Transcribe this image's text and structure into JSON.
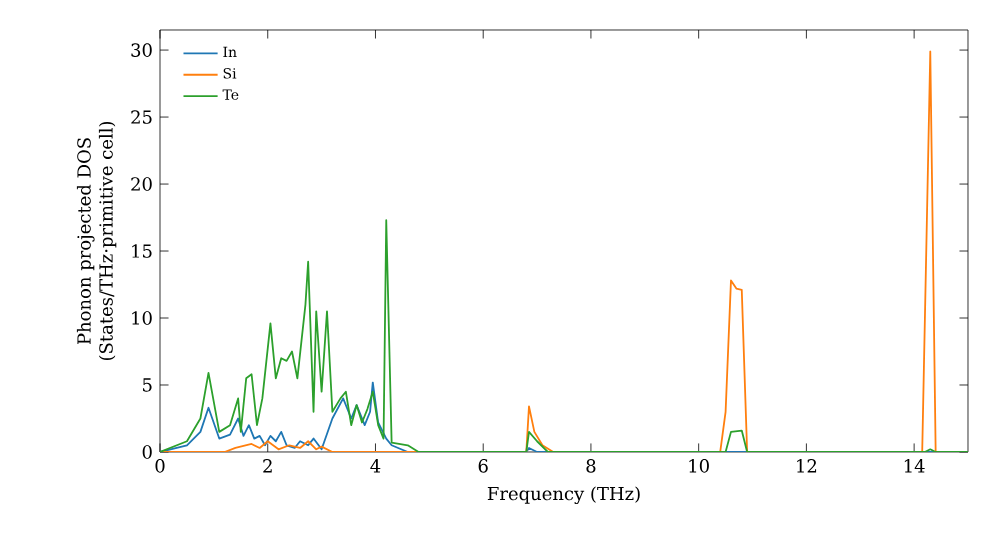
{
  "chart_data": {
    "type": "line",
    "xlabel": "Frequency (THz)",
    "ylabel": "Phonon projected DOS\n(States/THz·primitive cell)",
    "xlim": [
      0,
      15
    ],
    "ylim": [
      0,
      31.5
    ],
    "xticks": [
      0,
      2,
      4,
      6,
      8,
      10,
      12,
      14
    ],
    "yticks": [
      0,
      5,
      10,
      15,
      20,
      25,
      30
    ],
    "legend": "top left",
    "grid": false,
    "series": [
      {
        "name": "In",
        "color": "#1f77b4",
        "x": [
          0,
          0.5,
          0.75,
          0.9,
          1.1,
          1.3,
          1.45,
          1.55,
          1.65,
          1.75,
          1.85,
          1.95,
          2.05,
          2.15,
          2.25,
          2.35,
          2.5,
          2.6,
          2.75,
          2.85,
          3.0,
          3.2,
          3.4,
          3.55,
          3.65,
          3.8,
          3.9,
          3.95,
          4.05,
          4.2,
          4.3,
          4.6,
          6.8,
          6.85,
          7.0,
          15
        ],
        "values": [
          0,
          0.5,
          1.5,
          3.3,
          1,
          1.3,
          2.5,
          1.2,
          2,
          1,
          1.2,
          0.5,
          1.2,
          0.8,
          1.5,
          0.5,
          0.3,
          0.8,
          0.5,
          1,
          0.2,
          2.5,
          4,
          2.5,
          3.5,
          2,
          3,
          5.2,
          2.2,
          1,
          0.5,
          0,
          0,
          0.3,
          0,
          0
        ]
      },
      {
        "name": "Si",
        "color": "#ff7f0e",
        "x": [
          0,
          1.2,
          1.4,
          1.7,
          1.85,
          2.0,
          2.2,
          2.4,
          2.6,
          2.75,
          2.9,
          3.0,
          3.2,
          6.8,
          6.85,
          6.95,
          7.1,
          7.3,
          10.4,
          10.5,
          10.6,
          10.7,
          10.8,
          10.9,
          14.15,
          14.3,
          14.4,
          15
        ],
        "values": [
          0,
          0,
          0.3,
          0.6,
          0.3,
          0.8,
          0.2,
          0.5,
          0.3,
          0.8,
          0.2,
          0.4,
          0,
          0,
          3.4,
          1.5,
          0.5,
          0,
          0,
          3,
          12.8,
          12.2,
          12.1,
          0,
          0,
          29.9,
          0,
          0
        ]
      },
      {
        "name": "Te",
        "color": "#2ca02c",
        "x": [
          0,
          0.5,
          0.75,
          0.9,
          1.1,
          1.3,
          1.45,
          1.5,
          1.6,
          1.7,
          1.8,
          1.9,
          2.05,
          2.15,
          2.25,
          2.35,
          2.45,
          2.55,
          2.7,
          2.75,
          2.85,
          2.9,
          3.0,
          3.1,
          3.2,
          3.35,
          3.45,
          3.55,
          3.65,
          3.75,
          3.85,
          3.95,
          4.05,
          4.15,
          4.2,
          4.3,
          4.6,
          4.8,
          6.8,
          6.85,
          7.0,
          7.2,
          10.5,
          10.6,
          10.8,
          10.9,
          14.2,
          14.3,
          14.4,
          15
        ],
        "values": [
          0,
          0.8,
          2.5,
          5.9,
          1.5,
          2,
          4,
          1.5,
          5.5,
          5.8,
          2,
          4,
          9.6,
          5.5,
          7,
          6.8,
          7.5,
          5.5,
          11,
          14.2,
          3,
          10.5,
          4.5,
          10.5,
          3,
          4,
          4.5,
          2,
          3.5,
          2.2,
          3.2,
          4.5,
          2,
          1,
          17.3,
          0.7,
          0.5,
          0,
          0,
          1.5,
          0.8,
          0,
          0,
          1.5,
          1.6,
          0,
          0,
          0.2,
          0,
          0
        ]
      }
    ]
  }
}
